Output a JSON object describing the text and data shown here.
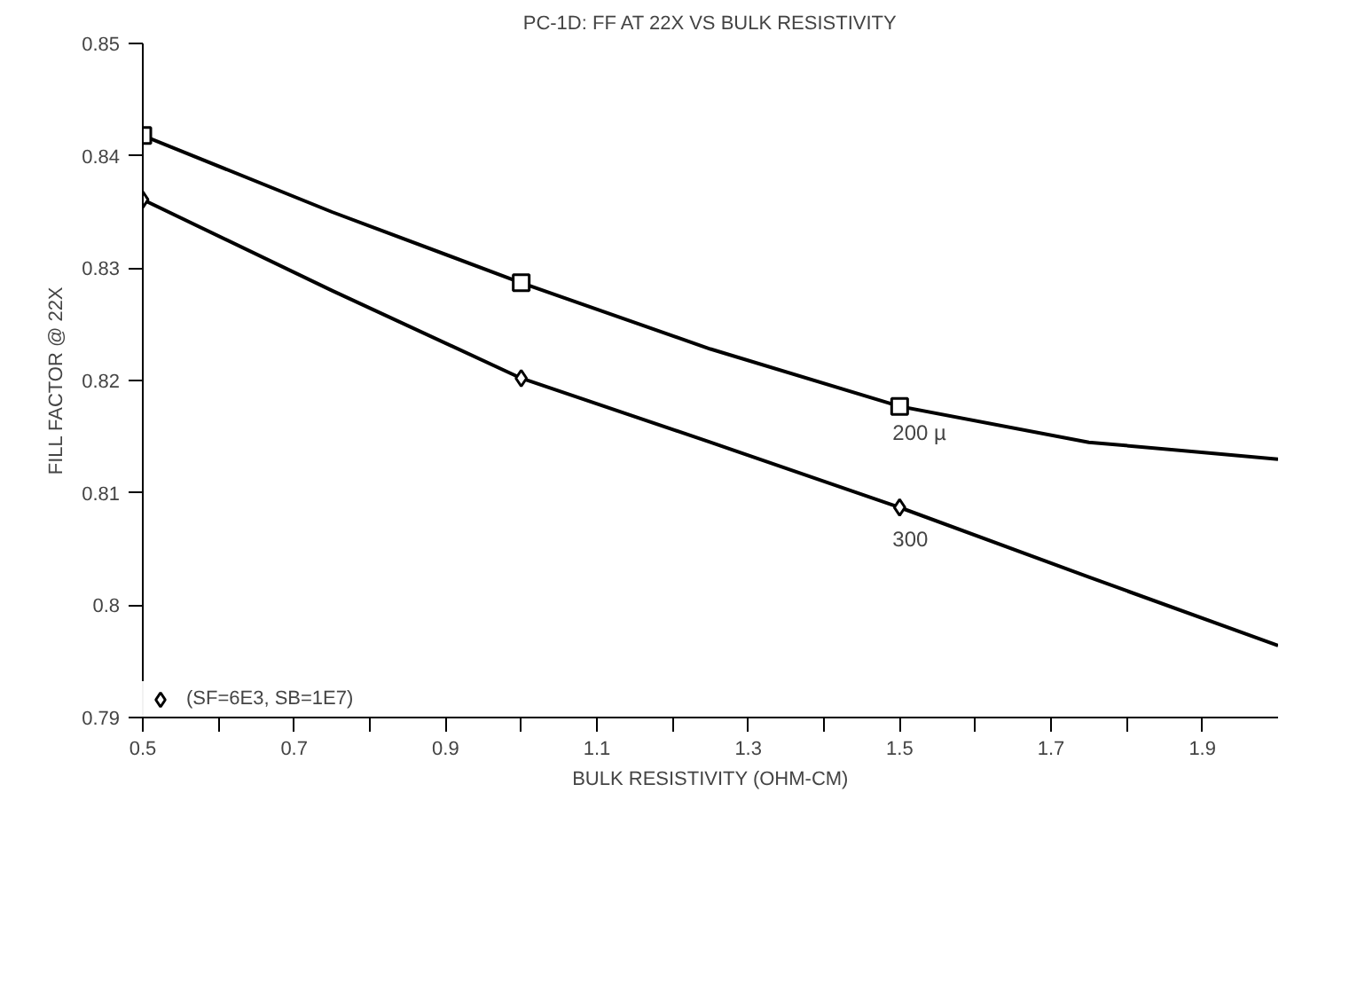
{
  "chart_data": {
    "type": "line",
    "title": "PC-1D: FF AT 22X VS BULK RESISTIVITY",
    "xlabel": "BULK RESISTIVITY (OHM-CM)",
    "ylabel": "FILL FACTOR @ 22X",
    "xlim": [
      0.5,
      2.0
    ],
    "ylim": [
      0.79,
      0.85
    ],
    "xticks": [
      0.5,
      {
        "value": 0.6,
        "label": null
      },
      0.7,
      {
        "value": 0.8,
        "label": null
      },
      0.9,
      {
        "value": 1.0,
        "label": null
      },
      1.1,
      {
        "value": 1.2,
        "label": null
      },
      1.3,
      {
        "value": 1.4,
        "label": null
      },
      1.5,
      {
        "value": 1.6,
        "label": null
      },
      1.7,
      {
        "value": 1.8,
        "label": null
      },
      1.9
    ],
    "yticks": [
      0.79,
      {
        "value": 0.8,
        "label": "0.8"
      },
      0.81,
      0.82,
      0.83,
      0.84,
      0.85
    ],
    "grid": false,
    "legend": "bottom left",
    "line_style": "solid",
    "series": [
      {
        "color": "#000000",
        "marker": "none",
        "x": [
          0.5,
          0.75,
          1.0,
          1.25,
          1.5,
          1.75,
          2.0
        ],
        "values": [
          0.8418,
          0.835,
          0.8287,
          0.8228,
          0.8177,
          0.8145,
          0.813
        ]
      },
      {
        "color": "#000000",
        "marker": "none",
        "x": [
          0.5,
          0.75,
          1.0,
          1.25,
          1.5,
          1.75,
          2.0
        ],
        "values": [
          0.8361,
          0.828,
          0.8202,
          0.8145,
          0.8087,
          0.8025,
          0.7964
        ]
      },
      {
        "type": "scatter",
        "color": "#000000",
        "marker": "square",
        "x": [
          0.5,
          1.0,
          1.5
        ],
        "values": [
          0.8418,
          0.8287,
          0.8177
        ]
      },
      {
        "type": "scatter",
        "name": "(SF=6E3, SB=1E7)",
        "color": "#000000",
        "marker": "diamond",
        "x": [
          0.5,
          1.0,
          1.5
        ],
        "values": [
          0.8361,
          0.8202,
          0.8087
        ]
      }
    ],
    "annotations": [
      {
        "text": "200 µ",
        "x": 1.5,
        "y": 0.8177
      },
      {
        "text": "300",
        "x": 1.5,
        "y": 0.8087
      }
    ]
  }
}
